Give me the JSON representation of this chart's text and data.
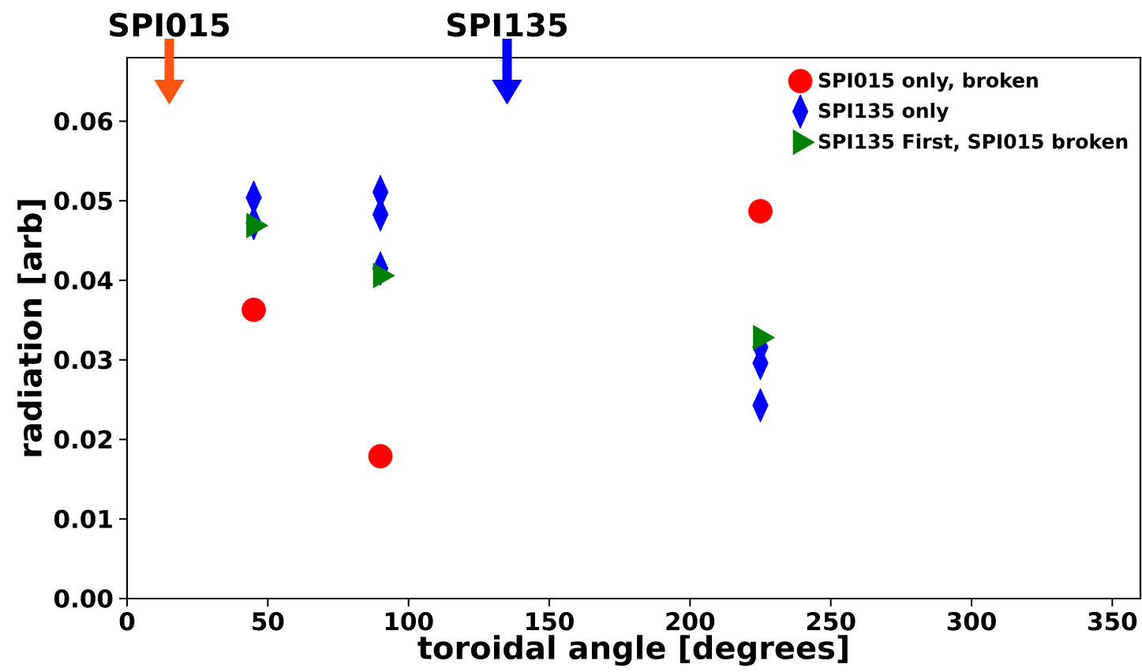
{
  "chart_data": {
    "type": "scatter",
    "xlabel": "toroidal angle [degrees]",
    "ylabel": "radiation [arb]",
    "xlim": [
      0,
      360
    ],
    "ylim": [
      0,
      0.068
    ],
    "xticks": [
      0,
      50,
      100,
      150,
      200,
      250,
      300,
      350
    ],
    "yticks": [
      {
        "value": 0,
        "label": "0.00"
      },
      0.01,
      0.02,
      0.03,
      0.04,
      0.05,
      0.06
    ],
    "legend": "top right",
    "grid": false,
    "ref_lines": [
      {
        "axis": "x",
        "value": 15,
        "label": "SPI015",
        "color": "#ff5511"
      },
      {
        "axis": "x",
        "value": 135,
        "label": "SPI135",
        "color": "#0000ff"
      }
    ],
    "series": [
      {
        "name": "SPI015 only, broken",
        "color": "#ff0000",
        "marker": "circle",
        "x": [
          45,
          90,
          225
        ],
        "values": [
          0.0363,
          0.0179,
          0.0487
        ]
      },
      {
        "name": "SPI135 only",
        "color": "#0000ff",
        "marker": "diamond",
        "x": [
          45,
          45,
          90,
          90,
          90,
          225,
          225,
          225
        ],
        "values": [
          0.0504,
          0.0472,
          0.0511,
          0.0483,
          0.0415,
          0.0316,
          0.0296,
          0.0243
        ]
      },
      {
        "name": "SPI135 First, SPI015 broken",
        "color": "#008000",
        "marker": "triangle",
        "x": [
          45,
          90,
          225
        ],
        "values": [
          0.0469,
          0.0406,
          0.0328
        ]
      }
    ]
  }
}
